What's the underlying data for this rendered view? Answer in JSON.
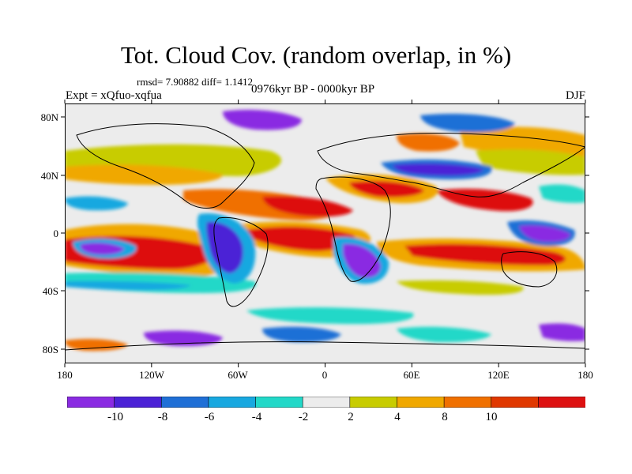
{
  "title": "Tot. Cloud Cov. (random overlap, in %)",
  "stats": "rmsd= 7.90882 diff= 1.1412",
  "experiment": "Expt = xQfuo-xqfua",
  "period": "0976kyr BP - 0000kyr BP",
  "season": "DJF",
  "axes": {
    "x_ticks": [
      "180",
      "120W",
      "60W",
      "0",
      "60E",
      "120E",
      "180"
    ],
    "y_ticks": [
      "80N",
      "40N",
      "0",
      "40S",
      "80S"
    ]
  },
  "colorbar": {
    "labels": [
      "-10",
      "-8",
      "-6",
      "-4",
      "-2",
      "2",
      "4",
      "8",
      "10"
    ],
    "colors": [
      "#8a2be2",
      "#4b22d6",
      "#1f6fd6",
      "#18a8e0",
      "#22d8c8",
      "#ececec",
      "#c8cc00",
      "#f0a800",
      "#f07000",
      "#e03800",
      "#dd1111"
    ]
  }
}
